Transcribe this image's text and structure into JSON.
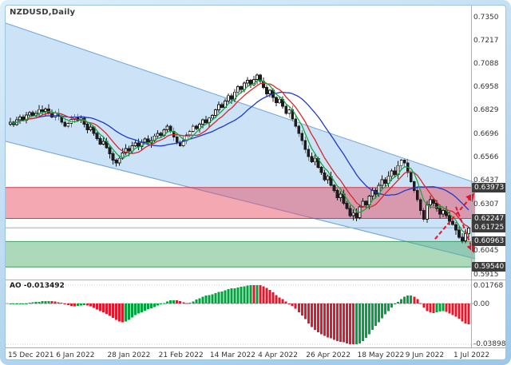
{
  "chart_data": {
    "type": "candlestick",
    "title": "NZDUSD,Daily",
    "symbol": "NZDUSD",
    "timeframe": "Daily",
    "y_axis": {
      "max": 0.735,
      "min": 0.5915,
      "labels": [
        "0.7350",
        "0.7217",
        "0.7088",
        "0.6958",
        "0.6829",
        "0.6696",
        "0.6566",
        "0.6437",
        "0.6307",
        "0.6045",
        "0.5915"
      ]
    },
    "price_markers": [
      "0.63973",
      "0.62247",
      "0.61725",
      "0.60963",
      "0.59540"
    ],
    "current_price": 0.61725,
    "x_axis": {
      "labels": [
        {
          "label": "15 Dec 2021",
          "index": 0
        },
        {
          "label": "6 Jan 2022",
          "index": 15
        },
        {
          "label": "28 Jan 2022",
          "index": 31
        },
        {
          "label": "21 Feb 2022",
          "index": 47
        },
        {
          "label": "14 Mar 2022",
          "index": 63
        },
        {
          "label": "4 Apr 2022",
          "index": 78
        },
        {
          "label": "26 Apr 2022",
          "index": 93
        },
        {
          "label": "18 May 2022",
          "index": 109
        },
        {
          "label": "9 Jun 2022",
          "index": 124
        },
        {
          "label": "1 Jul 2022",
          "index": 139
        }
      ]
    },
    "candles": {
      "first_open": 0.675,
      "closes": [
        0.6762,
        0.6748,
        0.6775,
        0.679,
        0.6772,
        0.6801,
        0.6815,
        0.6798,
        0.681,
        0.6832,
        0.6822,
        0.6835,
        0.681,
        0.679,
        0.6812,
        0.6795,
        0.6762,
        0.674,
        0.6755,
        0.6778,
        0.679,
        0.6772,
        0.6785,
        0.675,
        0.672,
        0.6735,
        0.67,
        0.667,
        0.664,
        0.6655,
        0.662,
        0.6585,
        0.655,
        0.6535,
        0.656,
        0.659,
        0.6615,
        0.66,
        0.663,
        0.6645,
        0.6625,
        0.665,
        0.6668,
        0.6645,
        0.666,
        0.6685,
        0.67,
        0.6688,
        0.672,
        0.674,
        0.671,
        0.668,
        0.665,
        0.663,
        0.666,
        0.669,
        0.671,
        0.674,
        0.6725,
        0.675,
        0.6775,
        0.676,
        0.6785,
        0.68,
        0.683,
        0.686,
        0.6845,
        0.688,
        0.691,
        0.689,
        0.693,
        0.696,
        0.6945,
        0.698,
        0.6995,
        0.697,
        0.7,
        0.7025,
        0.699,
        0.6955,
        0.692,
        0.694,
        0.69,
        0.687,
        0.689,
        0.685,
        0.681,
        0.683,
        0.678,
        0.674,
        0.67,
        0.666,
        0.661,
        0.657,
        0.654,
        0.656,
        0.651,
        0.648,
        0.644,
        0.646,
        0.641,
        0.638,
        0.634,
        0.636,
        0.631,
        0.628,
        0.624,
        0.6255,
        0.623,
        0.629,
        0.632,
        0.63,
        0.635,
        0.638,
        0.636,
        0.641,
        0.644,
        0.642,
        0.646,
        0.649,
        0.647,
        0.652,
        0.655,
        0.6535,
        0.648,
        0.643,
        0.638,
        0.633,
        0.627,
        0.622,
        0.63,
        0.633,
        0.631,
        0.628,
        0.625,
        0.627,
        0.624,
        0.621,
        0.619,
        0.616,
        0.612,
        0.61,
        0.614,
        0.6172
      ]
    },
    "moving_averages": [
      {
        "name": "slow",
        "period": 21,
        "color": "#2038c8"
      },
      {
        "name": "medium",
        "period": 9,
        "color": "#d62828"
      },
      {
        "name": "fast",
        "period": 5,
        "color": "#18a83c"
      }
    ],
    "zones": {
      "resistance": {
        "top": 0.63973,
        "bottom": 0.62247
      },
      "support": {
        "top": 0.60963,
        "bottom": 0.5954
      }
    },
    "channel": {
      "top_line": {
        "start_price": 0.7315,
        "end_price": 0.6425
      },
      "bottom_line": {
        "start_price": 0.6655,
        "end_price": 0.6
      }
    },
    "arrows": [
      {
        "from": {
          "index": 132.5,
          "price": 0.611
        },
        "to": {
          "index": 144.5,
          "price": 0.636
        }
      },
      {
        "from": {
          "index": 139,
          "price": 0.629
        },
        "to": {
          "index": 147,
          "price": 0.604
        }
      }
    ],
    "ao": {
      "label": "AO -0.013492",
      "value": -0.013492,
      "scale_max": 0.01768,
      "scale_min": -0.03898,
      "scale_labels": [
        "0.01768",
        "0.00",
        "-0.03898"
      ]
    }
  },
  "colors": {
    "channel_fill": "rgba(125,182,235,0.40)",
    "channel_edge": "rgba(90,150,210,0.85)",
    "zone_resistance_fill": "rgba(230,74,95,0.48)",
    "zone_resistance_edge": "rgba(205,45,65,0.9)",
    "zone_support_fill": "rgba(80,175,110,0.48)",
    "zone_support_edge": "rgba(50,150,85,0.9)",
    "candle_up": "#ffffff",
    "candle_down": "#1c1c1c",
    "candle_stroke": "#1c1c1c",
    "price_line": "#8fb0c6",
    "axis_box_bg": "#3c3c3c",
    "axis_box_text": "#ffffff",
    "ao_up": "#00a33e",
    "ao_down": "#e0192e",
    "arrow": "#e3142b"
  }
}
